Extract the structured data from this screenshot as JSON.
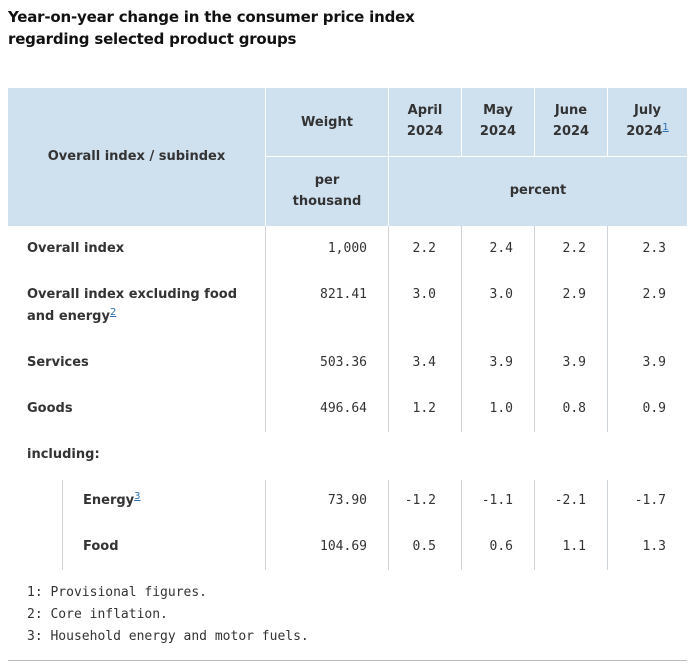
{
  "title": "Year-on-year change in the consumer price index regarding selected product groups",
  "header": {
    "index_label": "Overall index / subindex",
    "weight_label": "Weight",
    "weight_unit_line1": "per",
    "weight_unit_line2": "thousand",
    "percent_label": "percent",
    "months": [
      {
        "line1": "April",
        "line2": "2024",
        "footnote": ""
      },
      {
        "line1": "May",
        "line2": "2024",
        "footnote": ""
      },
      {
        "line1": "June",
        "line2": "2024",
        "footnote": ""
      },
      {
        "line1": "July",
        "line2": "2024",
        "footnote": "1"
      }
    ]
  },
  "rows": [
    {
      "label": "Overall index",
      "label2": "",
      "footnote": "",
      "weight": "1,000",
      "values": [
        "2.2",
        "2.4",
        "2.2",
        "2.3"
      ]
    },
    {
      "label": "Overall index excluding food",
      "label2": "and energy",
      "footnote": "2",
      "weight": "821.41",
      "values": [
        "3.0",
        "3.0",
        "2.9",
        "2.9"
      ]
    },
    {
      "label": "Services",
      "label2": "",
      "footnote": "",
      "weight": "503.36",
      "values": [
        "3.4",
        "3.9",
        "3.9",
        "3.9"
      ]
    },
    {
      "label": "Goods",
      "label2": "",
      "footnote": "",
      "weight": "496.64",
      "values": [
        "1.2",
        "1.0",
        "0.8",
        "0.9"
      ]
    },
    {
      "label": "including:",
      "label2": "",
      "footnote": "",
      "weight": "",
      "values": [
        "",
        "",
        "",
        ""
      ]
    },
    {
      "label": "Energy",
      "label2": "",
      "footnote": "3",
      "weight": "73.90",
      "values": [
        "-1.2",
        "-1.1",
        "-2.1",
        "-1.7"
      ]
    },
    {
      "label": "Food",
      "label2": "",
      "footnote": "",
      "weight": "104.69",
      "values": [
        "0.5",
        "0.6",
        "1.1",
        "1.3"
      ]
    }
  ],
  "footnotes": [
    "1: Provisional figures.",
    "2: Core inflation.",
    "3: Household energy and motor fuels."
  ]
}
